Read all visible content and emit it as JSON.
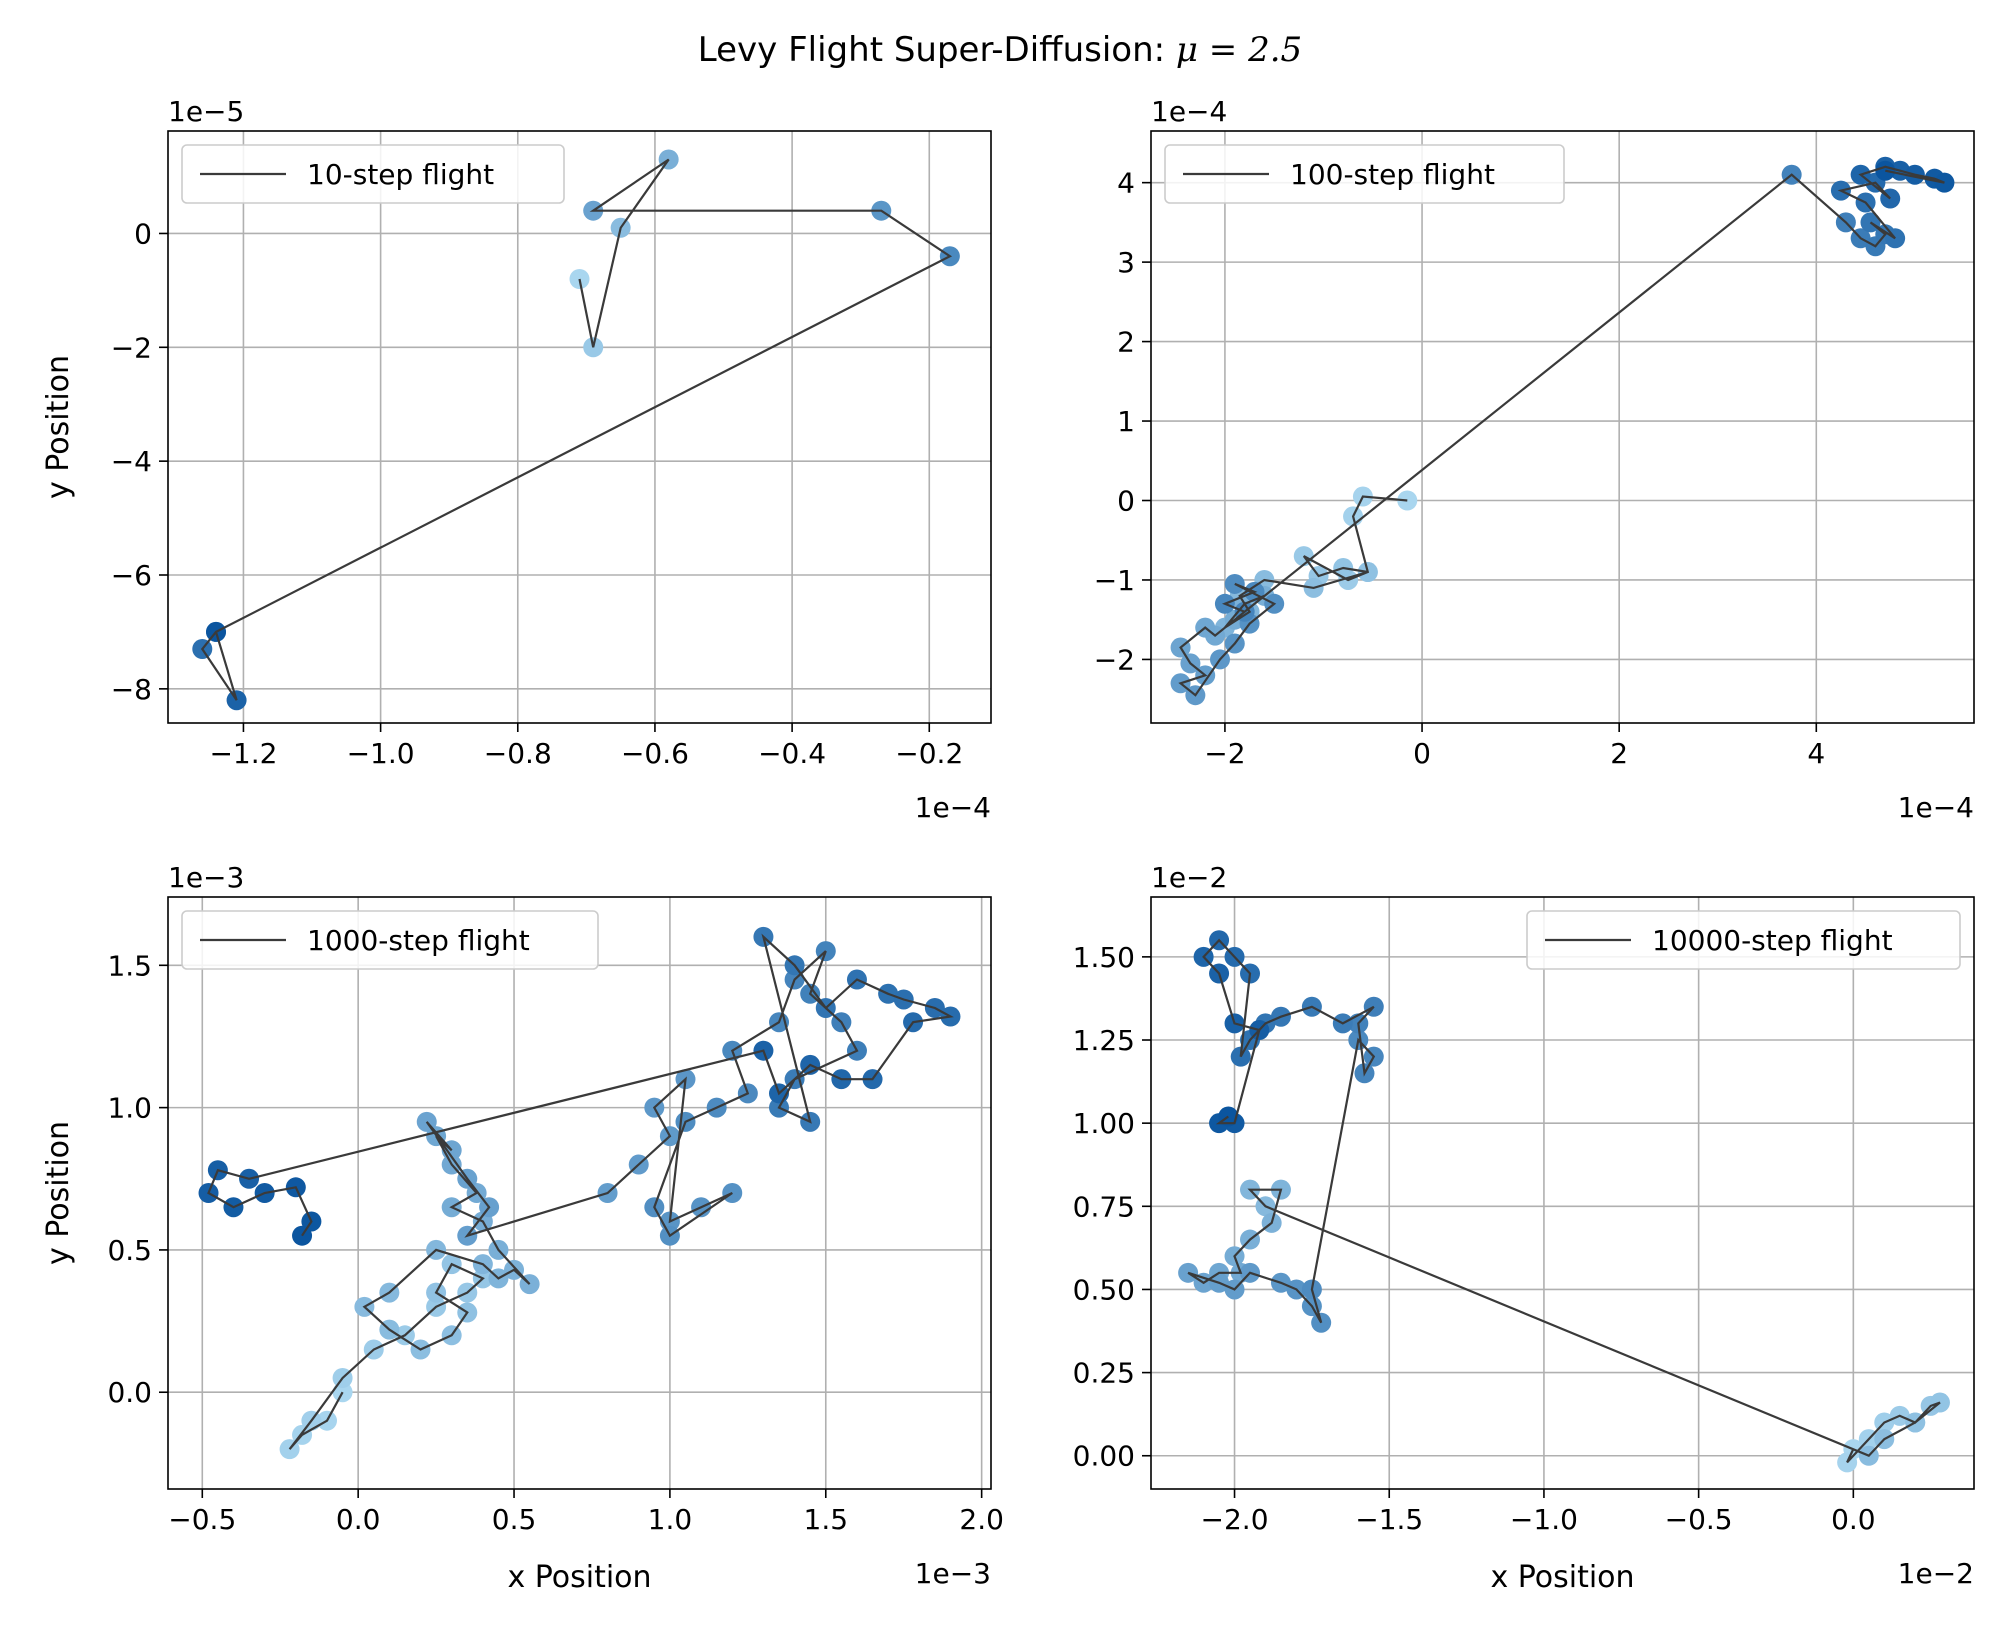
{
  "figure": {
    "title": "Levy Flight Super-Diffusion: ",
    "title_math": "μ = 2.5"
  },
  "colors": {
    "line": "#3a3a3a",
    "grid": "#b0b0b0",
    "point_start": "#a9d6ef",
    "point_end": "#0b559f",
    "legend_border": "#cccccc"
  },
  "chart_data": [
    {
      "type": "scatter",
      "legend": "10-step flight",
      "legend_loc": "upper left",
      "grid": true,
      "xlabel": "",
      "ylabel": "y Position",
      "x_offset_text": "1e−4",
      "y_offset_text": "1e−5",
      "xlim": [
        -1.31,
        -0.11
      ],
      "ylim": [
        -8.6,
        1.8
      ],
      "x_ticks": [
        -1.2,
        -1.0,
        -0.8,
        -0.6,
        -0.4,
        -0.2
      ],
      "x_tick_labels": [
        "−1.2",
        "−1.0",
        "−0.8",
        "−0.6",
        "−0.4",
        "−0.2"
      ],
      "y_ticks": [
        -8,
        -6,
        -4,
        -2,
        0
      ],
      "y_tick_labels": [
        "−8",
        "−6",
        "−4",
        "−2",
        "0"
      ],
      "x": [
        -0.71,
        -0.69,
        -0.65,
        -0.58,
        -0.69,
        -0.27,
        -0.17,
        -1.24,
        -1.26,
        -1.21,
        -1.24
      ],
      "y": [
        -0.8,
        -2.0,
        0.1,
        1.3,
        0.4,
        0.4,
        -0.4,
        -7.0,
        -7.3,
        -8.2,
        -7.0
      ]
    },
    {
      "type": "scatter",
      "legend": "100-step flight",
      "legend_loc": "upper left",
      "grid": true,
      "xlabel": "",
      "ylabel": "",
      "x_offset_text": "1e−4",
      "y_offset_text": "1e−4",
      "xlim": [
        -2.75,
        5.6
      ],
      "ylim": [
        -2.8,
        4.65
      ],
      "x_ticks": [
        -2,
        0,
        2,
        4
      ],
      "x_tick_labels": [
        "−2",
        "0",
        "2",
        "4"
      ],
      "y_ticks": [
        -2,
        -1,
        0,
        1,
        2,
        3,
        4
      ],
      "y_tick_labels": [
        "−2",
        "−1",
        "0",
        "1",
        "2",
        "3",
        "4"
      ],
      "x": [
        -0.15,
        -0.6,
        -0.7,
        -0.55,
        -0.75,
        -1.2,
        -1.05,
        -0.8,
        -0.55,
        -1.1,
        -1.6,
        -1.85,
        -1.75,
        -2.0,
        -1.8,
        -1.6,
        -1.9,
        -2.1,
        -2.2,
        -2.45,
        -2.35,
        -2.2,
        -2.45,
        -2.3,
        -2.05,
        -1.9,
        -1.75,
        -1.5,
        -1.9,
        -1.7,
        -2.0,
        -1.8,
        3.75,
        4.3,
        4.45,
        4.6,
        4.7,
        4.55,
        4.8,
        4.5,
        4.25,
        4.6,
        4.75,
        4.45,
        4.7,
        4.85,
        5.0,
        5.2,
        5.3,
        4.7
      ],
      "y": [
        0.0,
        0.05,
        -0.2,
        -0.9,
        -1.0,
        -0.7,
        -0.95,
        -0.85,
        -0.9,
        -1.1,
        -1.0,
        -1.2,
        -1.4,
        -1.6,
        -1.3,
        -1.2,
        -1.5,
        -1.7,
        -1.6,
        -1.85,
        -2.05,
        -2.2,
        -2.3,
        -2.45,
        -2.0,
        -1.8,
        -1.55,
        -1.3,
        -1.05,
        -1.15,
        -1.3,
        -1.4,
        4.1,
        3.5,
        3.3,
        3.2,
        3.35,
        3.5,
        3.3,
        3.75,
        3.9,
        4.0,
        3.8,
        4.1,
        4.2,
        4.15,
        4.1,
        4.05,
        4.0,
        4.15
      ]
    },
    {
      "type": "scatter",
      "legend": "1000-step flight",
      "legend_loc": "upper left",
      "grid": true,
      "xlabel": "x Position",
      "ylabel": "y Position",
      "x_offset_text": "1e−3",
      "y_offset_text": "1e−3",
      "xlim": [
        -0.61,
        2.03
      ],
      "ylim": [
        -0.34,
        1.74
      ],
      "x_ticks": [
        -0.5,
        0.0,
        0.5,
        1.0,
        1.5,
        2.0
      ],
      "x_tick_labels": [
        "−0.5",
        "0.0",
        "0.5",
        "1.0",
        "1.5",
        "2.0"
      ],
      "y_ticks": [
        0.0,
        0.5,
        1.0,
        1.5
      ],
      "y_tick_labels": [
        "0.0",
        "0.5",
        "1.0",
        "1.5"
      ],
      "x": [
        -0.05,
        -0.1,
        -0.18,
        -0.22,
        -0.15,
        -0.05,
        0.05,
        0.15,
        0.25,
        0.35,
        0.4,
        0.3,
        0.25,
        0.35,
        0.3,
        0.2,
        0.1,
        0.02,
        0.1,
        0.25,
        0.4,
        0.45,
        0.5,
        0.55,
        0.45,
        0.4,
        0.3,
        0.38,
        0.3,
        0.25,
        0.3,
        0.22,
        0.35,
        0.42,
        0.35,
        0.8,
        0.9,
        1.0,
        0.95,
        1.05,
        1.0,
        1.1,
        1.2,
        1.0,
        0.95,
        1.05,
        1.15,
        1.25,
        1.2,
        1.35,
        1.4,
        1.5,
        1.45,
        1.55,
        1.6,
        1.4,
        1.35,
        1.45,
        1.3,
        1.4,
        1.5,
        1.6,
        1.7,
        1.75,
        1.85,
        1.9,
        1.78,
        1.65,
        1.55,
        1.45,
        1.35,
        1.3,
        -0.35,
        -0.45,
        -0.48,
        -0.4,
        -0.3,
        -0.2,
        -0.15,
        -0.18
      ],
      "y": [
        0.0,
        -0.1,
        -0.15,
        -0.2,
        -0.1,
        0.05,
        0.15,
        0.2,
        0.3,
        0.35,
        0.4,
        0.45,
        0.35,
        0.28,
        0.2,
        0.15,
        0.22,
        0.3,
        0.35,
        0.5,
        0.45,
        0.4,
        0.43,
        0.38,
        0.5,
        0.6,
        0.65,
        0.7,
        0.8,
        0.9,
        0.85,
        0.95,
        0.75,
        0.65,
        0.55,
        0.7,
        0.8,
        0.9,
        1.0,
        1.1,
        0.6,
        0.65,
        0.7,
        0.55,
        0.65,
        0.95,
        1.0,
        1.05,
        1.2,
        1.3,
        1.45,
        1.55,
        1.4,
        1.3,
        1.2,
        1.1,
        1.0,
        0.95,
        1.6,
        1.5,
        1.35,
        1.45,
        1.4,
        1.38,
        1.35,
        1.32,
        1.3,
        1.1,
        1.1,
        1.15,
        1.05,
        1.2,
        0.75,
        0.78,
        0.7,
        0.65,
        0.7,
        0.72,
        0.6,
        0.55
      ]
    },
    {
      "type": "scatter",
      "legend": "10000-step flight",
      "legend_loc": "upper right",
      "grid": true,
      "xlabel": "x Position",
      "ylabel": "",
      "x_offset_text": "1e−2",
      "y_offset_text": "1e−2",
      "xlim": [
        -2.27,
        0.39
      ],
      "ylim": [
        -0.1,
        1.68
      ],
      "x_ticks": [
        -2.0,
        -1.5,
        -1.0,
        -0.5,
        0.0
      ],
      "x_tick_labels": [
        "−2.0",
        "−1.5",
        "−1.0",
        "−0.5",
        "0.0"
      ],
      "y_ticks": [
        0.0,
        0.25,
        0.5,
        0.75,
        1.0,
        1.25,
        1.5
      ],
      "y_tick_labels": [
        "0.00",
        "0.25",
        "0.50",
        "0.75",
        "1.00",
        "1.25",
        "1.50"
      ],
      "x": [
        0.0,
        -0.02,
        0.05,
        0.1,
        0.15,
        0.2,
        0.25,
        0.28,
        0.2,
        0.1,
        0.05,
        -1.9,
        -1.95,
        -1.85,
        -1.88,
        -1.95,
        -2.0,
        -1.98,
        -2.05,
        -2.1,
        -2.15,
        -2.05,
        -2.0,
        -1.95,
        -1.85,
        -1.8,
        -1.75,
        -1.72,
        -1.75,
        -1.6,
        -1.55,
        -1.58,
        -1.6,
        -1.55,
        -1.65,
        -1.75,
        -1.85,
        -1.9,
        -1.95,
        -1.98,
        -1.95,
        -2.0,
        -2.05,
        -2.1,
        -2.05,
        -2.0,
        -1.92,
        -2.0,
        -2.05,
        -2.02
      ],
      "y": [
        0.02,
        -0.02,
        0.05,
        0.1,
        0.12,
        0.1,
        0.15,
        0.16,
        0.1,
        0.05,
        0.0,
        0.75,
        0.8,
        0.8,
        0.7,
        0.65,
        0.6,
        0.55,
        0.55,
        0.52,
        0.55,
        0.52,
        0.5,
        0.55,
        0.52,
        0.5,
        0.45,
        0.4,
        0.5,
        1.25,
        1.2,
        1.15,
        1.3,
        1.35,
        1.3,
        1.35,
        1.32,
        1.3,
        1.25,
        1.2,
        1.45,
        1.5,
        1.55,
        1.5,
        1.45,
        1.3,
        1.28,
        1.0,
        1.0,
        1.02
      ]
    }
  ]
}
